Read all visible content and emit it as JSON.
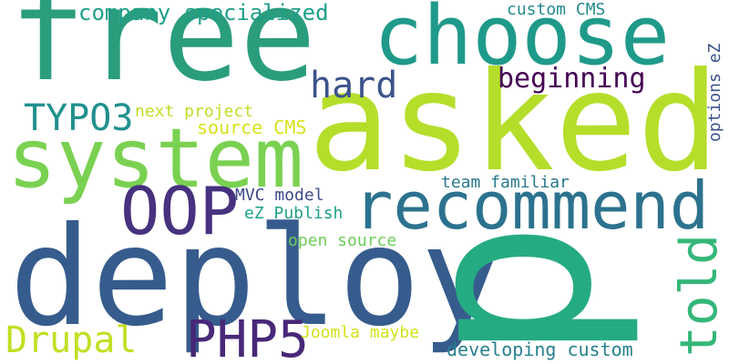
{
  "words": [
    {
      "id": "free",
      "text": "free",
      "color": "#2a9d7c"
    },
    {
      "id": "asked",
      "text": "asked",
      "color": "#b5de2b"
    },
    {
      "id": "choose",
      "text": "choose",
      "color": "#1f9a8a"
    },
    {
      "id": "system",
      "text": "system",
      "color": "#7ad151"
    },
    {
      "id": "deploy",
      "text": "deploy",
      "color": "#365c8d"
    },
    {
      "id": "recommend",
      "text": "recommend",
      "color": "#2c728e"
    },
    {
      "id": "oop",
      "text": "OOP",
      "color": "#46327e"
    },
    {
      "id": "hard",
      "text": "hard",
      "color": "#3b528b"
    },
    {
      "id": "beginning",
      "text": "beginning",
      "color": "#440154"
    },
    {
      "id": "typo3",
      "text": "TYPO3",
      "color": "#21908d"
    },
    {
      "id": "company-specialized",
      "text": "company specialized",
      "color": "#1f9e89"
    },
    {
      "id": "custom-cms",
      "text": "custom CMS",
      "color": "#238a8d"
    },
    {
      "id": "next-project",
      "text": "next project",
      "color": "#bddf26"
    },
    {
      "id": "source-cms",
      "text": "source CMS",
      "color": "#d8e219"
    },
    {
      "id": "mvc-model",
      "text": "MVC model",
      "color": "#3e4989"
    },
    {
      "id": "ez-publish",
      "text": "eZ Publish",
      "color": "#1fa187"
    },
    {
      "id": "team-familiar",
      "text": "team familiar",
      "color": "#2a788e"
    },
    {
      "id": "open-source",
      "text": "open source",
      "color": "#6ece58"
    },
    {
      "id": "told",
      "text": "told",
      "color": "#35b779"
    },
    {
      "id": "drupal",
      "text": "Drupal",
      "color": "#c2df23"
    },
    {
      "id": "php5",
      "text": "PHP5",
      "color": "#482878"
    },
    {
      "id": "joomla-maybe",
      "text": "Joomla maybe",
      "color": "#d2e21b"
    },
    {
      "id": "developing-custom",
      "text": "developing custom",
      "color": "#27808e"
    },
    {
      "id": "options-ez",
      "text": "options eZ",
      "color": "#3b528b"
    },
    {
      "id": "big-p",
      "text": "p",
      "color": "#25ab82"
    }
  ]
}
